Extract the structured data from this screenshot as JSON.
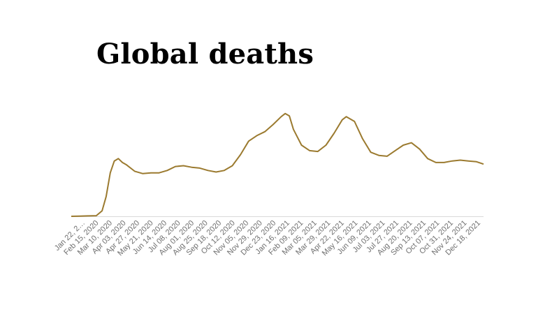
{
  "chart_data": {
    "type": "line",
    "title": "Global deaths",
    "xlabel": "",
    "ylabel": "",
    "grid": false,
    "legend": "none",
    "color": "#9b7a2f",
    "ylim": [
      0,
      15000
    ],
    "tick_labels": [
      "Jan 22, 2…",
      "Feb 15, 2020",
      "Mar 10, 2020",
      "Apr 03, 2020",
      "Apr 27, 2020",
      "May 21, 2020",
      "Jun 14, 2020",
      "Jul 08, 2020",
      "Aug 01, 2020",
      "Aug 25, 2020",
      "Sep 18, 2020",
      "Oct 12, 2020",
      "Nov 05, 2020",
      "Nov 29, 2020",
      "Dec 23, 2020",
      "Jan 16, 2021",
      "Feb 09, 2021",
      "Mar 05, 2021",
      "Mar 29, 2021",
      "Apr 22, 2021",
      "May 16, 2021",
      "Jun 09, 2021",
      "Jul 03, 2021",
      "Jul 27, 2021",
      "Aug 20, 2021",
      "Sep 13, 2021",
      "Oct 07, 2021",
      "Oct 31, 2021",
      "Nov 24, 2021",
      "Dec 18, 2021"
    ],
    "x": [
      "2020-01-22",
      "2020-02-05",
      "2020-02-20",
      "2020-03-05",
      "2020-03-15",
      "2020-03-22",
      "2020-03-29",
      "2020-04-05",
      "2020-04-12",
      "2020-04-19",
      "2020-04-26",
      "2020-05-10",
      "2020-05-24",
      "2020-06-07",
      "2020-06-21",
      "2020-07-05",
      "2020-07-19",
      "2020-08-02",
      "2020-08-16",
      "2020-08-30",
      "2020-09-13",
      "2020-09-27",
      "2020-10-11",
      "2020-10-25",
      "2020-11-08",
      "2020-11-22",
      "2020-12-06",
      "2020-12-20",
      "2021-01-03",
      "2021-01-17",
      "2021-01-24",
      "2021-01-31",
      "2021-02-07",
      "2021-02-21",
      "2021-03-07",
      "2021-03-21",
      "2021-04-04",
      "2021-04-18",
      "2021-05-02",
      "2021-05-09",
      "2021-05-23",
      "2021-06-06",
      "2021-06-20",
      "2021-07-04",
      "2021-07-18",
      "2021-08-01",
      "2021-08-15",
      "2021-08-29",
      "2021-09-12",
      "2021-09-26",
      "2021-10-10",
      "2021-10-24",
      "2021-11-07",
      "2021-11-21",
      "2021-12-05",
      "2021-12-19",
      "2021-12-31"
    ],
    "values": [
      0,
      20,
      50,
      80,
      700,
      2500,
      5500,
      7000,
      7300,
      6800,
      6500,
      5700,
      5400,
      5500,
      5500,
      5800,
      6300,
      6400,
      6200,
      6100,
      5800,
      5600,
      5800,
      6400,
      7800,
      9500,
      10200,
      10700,
      11600,
      12600,
      13000,
      12700,
      11000,
      9000,
      8300,
      8200,
      9000,
      10500,
      12200,
      12600,
      12000,
      9800,
      8100,
      7700,
      7600,
      8300,
      9000,
      9300,
      8500,
      7300,
      6800,
      6800,
      7000,
      7100,
      7000,
      6900,
      6600
    ],
    "line_segments": []
  }
}
